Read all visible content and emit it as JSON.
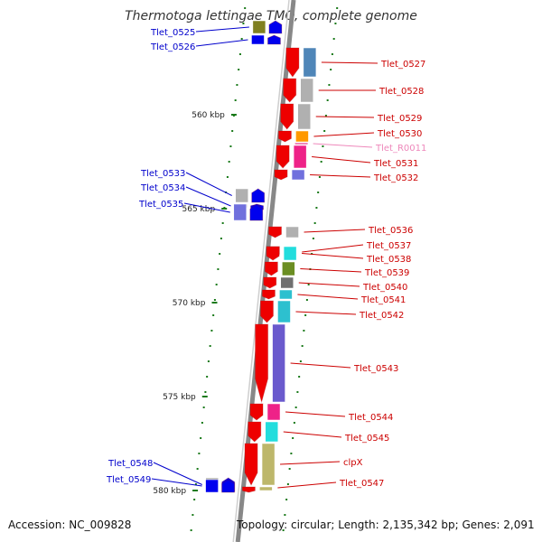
{
  "title": "Thermotoga lettingae TMO, complete genome",
  "footer": {
    "accession": "Accession: NC_009828",
    "summary": "Topology: circular; Length: 2,135,342 bp; Genes: 2,091"
  },
  "scale": {
    "ticks": [
      {
        "label": "560 kbp",
        "kbp": 560
      },
      {
        "label": "565 kbp",
        "kbp": 565
      },
      {
        "label": "570 kbp",
        "kbp": 570
      },
      {
        "label": "575 kbp",
        "kbp": 575
      },
      {
        "label": "580 kbp",
        "kbp": 580
      }
    ]
  },
  "colors": {
    "forward_label": "#0000cc",
    "reverse_label": "#cc0000",
    "rna_label": "#ee88bb",
    "forward_gene": "#0000ee",
    "reverse_gene": "#ee0000",
    "backbone": "#888888",
    "tick": "#1a7a1a"
  },
  "genes": [
    {
      "label": "Tlet_0525",
      "strand": "forward",
      "cog": "#808020"
    },
    {
      "label": "Tlet_0526",
      "strand": "forward",
      "cog": "#0000ee"
    },
    {
      "label": "Tlet_0527",
      "strand": "reverse",
      "cog": "#4f86b8"
    },
    {
      "label": "Tlet_0528",
      "strand": "reverse",
      "cog": "#b0b0b0"
    },
    {
      "label": "Tlet_0529",
      "strand": "reverse",
      "cog": "#b0b0b0"
    },
    {
      "label": "Tlet_0530",
      "strand": "reverse",
      "cog": "#ff9900"
    },
    {
      "label": "Tlet_R0011",
      "strand": "reverse",
      "type": "rna",
      "cog": ""
    },
    {
      "label": "Tlet_0531",
      "strand": "reverse",
      "cog": "#ee2288"
    },
    {
      "label": "Tlet_0532",
      "strand": "reverse",
      "cog": "#7070dd"
    },
    {
      "label": "Tlet_0533",
      "strand": "forward",
      "cog": "#b0b0b0"
    },
    {
      "label": "Tlet_0534",
      "strand": "forward",
      "cog": "#b0b0b0"
    },
    {
      "label": "Tlet_0535",
      "strand": "forward",
      "cog": "#7070dd"
    },
    {
      "label": "Tlet_0536",
      "strand": "reverse",
      "cog": "#b0b0b0"
    },
    {
      "label": "Tlet_0537",
      "strand": "reverse",
      "cog": "#22dddd"
    },
    {
      "label": "Tlet_0538",
      "strand": "reverse",
      "cog": "#22dddd"
    },
    {
      "label": "Tlet_0539",
      "strand": "reverse",
      "cog": "#6b8e23"
    },
    {
      "label": "Tlet_0540",
      "strand": "reverse",
      "cog": "#707070"
    },
    {
      "label": "Tlet_0541",
      "strand": "reverse",
      "cog": "#2dc0cf"
    },
    {
      "label": "Tlet_0542",
      "strand": "reverse",
      "cog": "#2dc0cf"
    },
    {
      "label": "Tlet_0543",
      "strand": "reverse",
      "cog": "#6a5acd"
    },
    {
      "label": "Tlet_0544",
      "strand": "reverse",
      "cog": "#ee2288"
    },
    {
      "label": "Tlet_0545",
      "strand": "reverse",
      "cog": "#22dddd"
    },
    {
      "label": "clpX",
      "strand": "reverse",
      "cog": "#bdb76b"
    },
    {
      "label": "Tlet_0547",
      "strand": "reverse",
      "cog": "#bdb76b"
    },
    {
      "label": "Tlet_0548",
      "strand": "forward",
      "cog": "#b0b0b0"
    },
    {
      "label": "Tlet_0549",
      "strand": "forward",
      "cog": "#0000ee"
    }
  ]
}
